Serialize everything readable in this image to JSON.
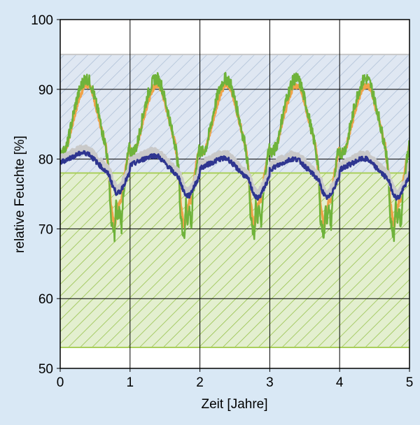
{
  "chart_data": {
    "type": "line",
    "title": "",
    "xlabel": "Zeit [Jahre]",
    "ylabel": "relative Feuchte [%]",
    "xlim": [
      0,
      5
    ],
    "ylim": [
      50,
      100
    ],
    "xticks": [
      "0",
      "1",
      "2",
      "3",
      "4",
      "5"
    ],
    "yticks": [
      "50",
      "60",
      "70",
      "80",
      "90",
      "100"
    ],
    "grid": true,
    "legend": "none",
    "bands": [
      {
        "y0": 78,
        "y1": 95,
        "fill": "#dfe7f2",
        "hatch": "#aebfd6",
        "edge": "#c9c9c9"
      },
      {
        "y0": 53,
        "y1": 78,
        "fill": "#e3efcf",
        "hatch": "#93c045",
        "edge": "#a9cf5a"
      }
    ],
    "colors": {
      "background": "#d9e8f5",
      "plot_background": "#ffffff",
      "grid": "#000000"
    },
    "series": [
      {
        "color": "#f0a24a",
        "x": [
          0,
          0.05,
          0.1,
          0.15,
          0.2,
          0.25,
          0.3,
          0.35,
          0.4,
          0.45,
          0.5,
          0.55,
          0.6,
          0.65,
          0.7,
          0.72,
          0.75,
          0.78,
          0.8,
          0.82,
          0.85,
          0.88,
          0.9,
          0.93,
          0.96,
          1.0
        ],
        "y": [
          81,
          81,
          82,
          84,
          86,
          88,
          89.5,
          90.5,
          90.5,
          90,
          88,
          86,
          84,
          82,
          78,
          74,
          72,
          70,
          72,
          73,
          74,
          74,
          76,
          78,
          80,
          82
        ],
        "period": 1
      },
      {
        "color": "#6fb33b",
        "x": [
          0,
          0.05,
          0.1,
          0.15,
          0.2,
          0.25,
          0.3,
          0.35,
          0.4,
          0.45,
          0.5,
          0.55,
          0.6,
          0.65,
          0.7,
          0.72,
          0.75,
          0.78,
          0.8,
          0.82,
          0.85,
          0.88,
          0.9,
          0.93,
          0.96,
          1.0
        ],
        "y": [
          81,
          81,
          82,
          84.5,
          87,
          89,
          90.5,
          91.5,
          91.5,
          90.5,
          88.5,
          86.5,
          84,
          82,
          78,
          72,
          70,
          69,
          74,
          71,
          73,
          70,
          75,
          77,
          80,
          82
        ],
        "period": 1
      },
      {
        "color": "#c9c9c9",
        "x": [
          0,
          0.1,
          0.2,
          0.3,
          0.4,
          0.5,
          0.6,
          0.7,
          0.75,
          0.8,
          0.85,
          0.9,
          1.0
        ],
        "y": [
          80,
          80.5,
          81,
          81.5,
          81.5,
          80.5,
          79.5,
          78.5,
          77,
          76,
          76,
          77,
          79
        ],
        "period": 1
      },
      {
        "color": "#2e3590",
        "x": [
          0,
          0.1,
          0.2,
          0.3,
          0.4,
          0.5,
          0.6,
          0.7,
          0.75,
          0.8,
          0.85,
          0.9,
          1.0
        ],
        "y": [
          79.5,
          80,
          80.5,
          81,
          81,
          80,
          79,
          78,
          76.5,
          75.5,
          75.5,
          76.5,
          78.5
        ],
        "period": 1
      }
    ]
  }
}
